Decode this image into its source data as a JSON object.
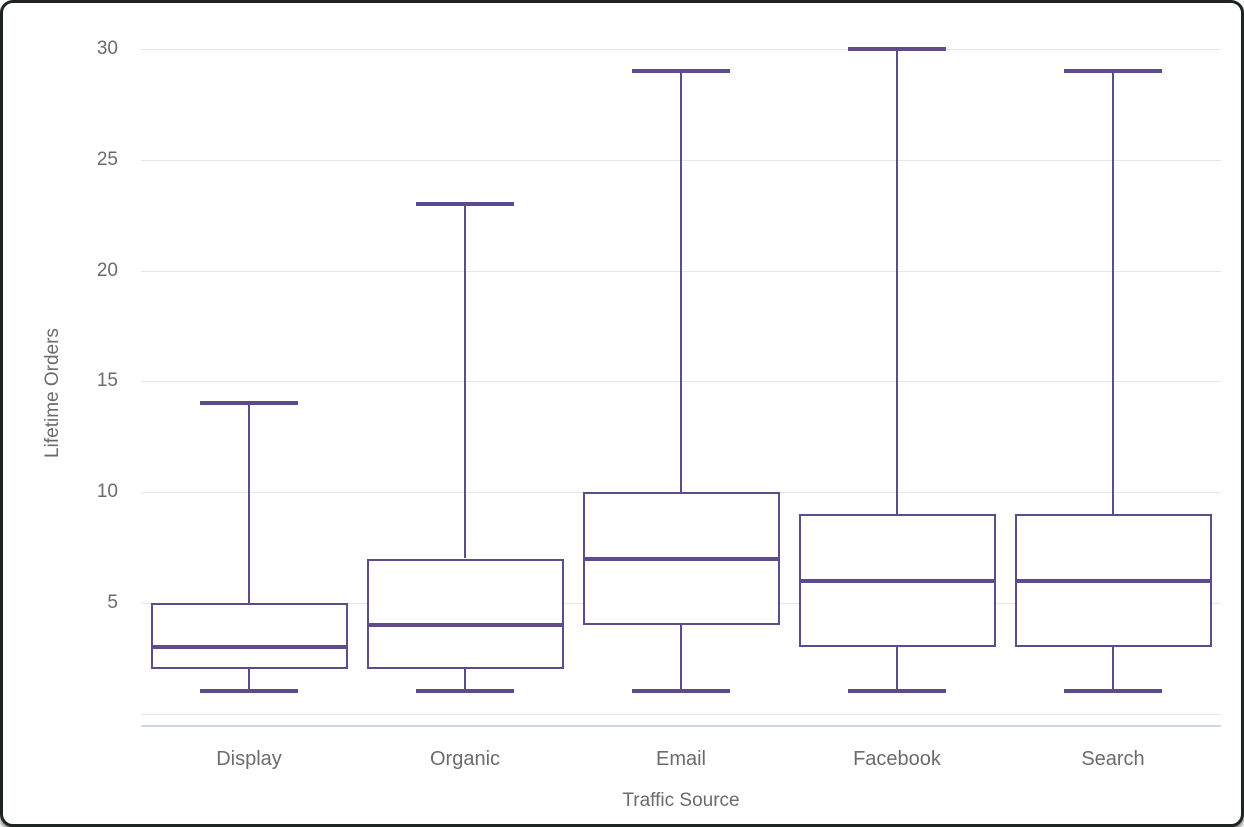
{
  "chart_data": {
    "type": "boxplot",
    "title": "",
    "xlabel": "Traffic Source",
    "ylabel": "Lifetime Orders",
    "categories": [
      "Display",
      "Organic",
      "Email",
      "Facebook",
      "Search"
    ],
    "series": [
      {
        "name": "Display",
        "min": 1,
        "q1": 2,
        "median": 3,
        "q3": 5,
        "max": 14
      },
      {
        "name": "Organic",
        "min": 1,
        "q1": 2,
        "median": 4,
        "q3": 7,
        "max": 23
      },
      {
        "name": "Email",
        "min": 1,
        "q1": 4,
        "median": 7,
        "q3": 10,
        "max": 29
      },
      {
        "name": "Facebook",
        "min": 1,
        "q1": 3,
        "median": 6,
        "q3": 9,
        "max": 30
      },
      {
        "name": "Search",
        "min": 1,
        "q1": 3,
        "median": 6,
        "q3": 9,
        "max": 29
      }
    ],
    "y_ticks": [
      5,
      10,
      15,
      20,
      25,
      30
    ],
    "ylim": [
      0,
      31
    ],
    "grid": true,
    "legend": "none",
    "colors": {
      "box_stroke": "#5e4b8b",
      "gridline": "#e6e6e6",
      "axis_line": "#ccd6e7",
      "text": "#6b6b6b",
      "background": "#ffffff",
      "frame": "#1e2323"
    }
  }
}
